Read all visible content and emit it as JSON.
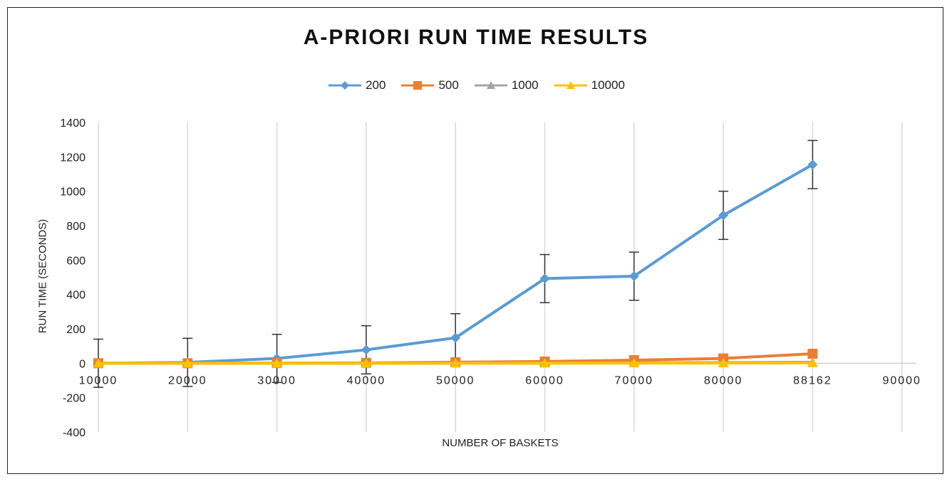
{
  "chart_data": {
    "type": "line",
    "title": "A-PRIORI RUN TIME RESULTS",
    "xlabel": "NUMBER OF BASKETS",
    "ylabel": "RUN TIME (SECONDS)",
    "categories": [
      "10000",
      "20000",
      "30000",
      "40000",
      "50000",
      "60000",
      "70000",
      "80000",
      "88162",
      "90000"
    ],
    "ylim": [
      -400,
      1400
    ],
    "yticks": [
      "1400",
      "1200",
      "1000",
      "800",
      "600",
      "400",
      "200",
      "0",
      "-200",
      "-400"
    ],
    "grid": "vertical",
    "legend_position": "top",
    "error_bar": 140,
    "series": [
      {
        "name": "200",
        "color": "#5b9bd5",
        "marker": "diamond",
        "values": [
          0,
          5,
          28,
          78,
          148,
          492,
          506,
          860,
          1155,
          null
        ]
      },
      {
        "name": "500",
        "color": "#ed7d31",
        "marker": "square",
        "values": [
          0,
          0,
          1,
          2,
          6,
          10,
          18,
          28,
          55,
          null
        ]
      },
      {
        "name": "1000",
        "color": "#a5a5a5",
        "marker": "triangle",
        "values": [
          0,
          0,
          0,
          0,
          1,
          2,
          3,
          4,
          6,
          null
        ]
      },
      {
        "name": "10000",
        "color": "#ffc000",
        "marker": "triangle",
        "values": [
          0,
          0,
          0,
          0,
          0,
          0,
          1,
          1,
          2,
          null
        ]
      }
    ]
  }
}
